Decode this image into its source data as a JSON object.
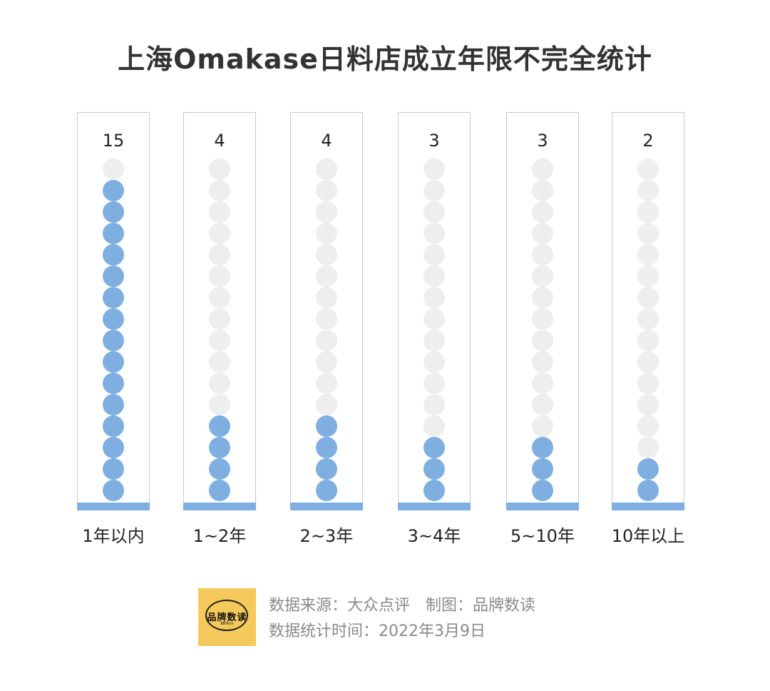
{
  "title": "上海Omakase日料店成立年限不完全统计",
  "chart_data": {
    "type": "bar",
    "title": "上海Omakase日料店成立年限不完全统计",
    "categories": [
      "1年以内",
      "1~2年",
      "2~3年",
      "3~4年",
      "5~10年",
      "10年以上"
    ],
    "values": [
      15,
      4,
      4,
      3,
      3,
      2
    ],
    "dots_per_column": 16,
    "colors": {
      "filled": "#7eafe0",
      "empty": "#eeeeee",
      "frame": "#c8c8c8",
      "base": "#7eafe0"
    }
  },
  "footer": {
    "source_label": "数据来源：大众点评",
    "maker_label": "制图：品牌数读",
    "date_label": "数据统计时间：2022年3月9日",
    "logo_text": "品牌数读",
    "logo_sub": "BBTech"
  }
}
